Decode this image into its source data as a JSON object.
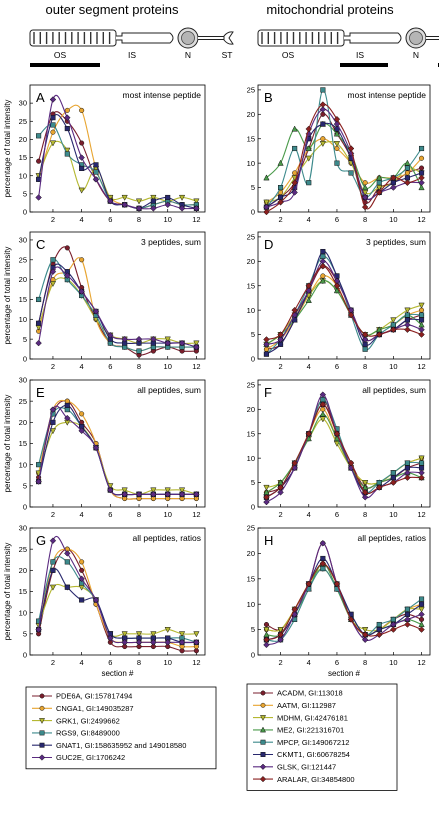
{
  "column_titles": [
    "outer segment proteins",
    "mitochondrial proteins"
  ],
  "rod_labels": {
    "left": [
      "OS",
      "IS",
      "N",
      "ST"
    ],
    "right": [
      "OS",
      "IS",
      "N",
      "ST"
    ]
  },
  "y_axis_label": "percentage of total intensity",
  "x_axis_label": "section #",
  "legend_left": {
    "names": [
      "PDE6A, GI:157817494",
      "CNGA1, GI:149035287",
      "GRK1, GI:2499662",
      "RGS9, GI:8489000",
      "GNAT1, GI:158635952 and 149018580",
      "GUC2E, GI:1706242"
    ],
    "colors": [
      "#7a1e2c",
      "#e8a531",
      "#b5b832",
      "#3d8a8c",
      "#28286e",
      "#5a2a80"
    ],
    "markers": [
      "circle",
      "circle",
      "triangle-down",
      "square",
      "square",
      "diamond"
    ]
  },
  "legend_right": {
    "names": [
      "ACADM, GI:113018",
      "AATM, GI:112987",
      "MDHM, GI:42476181",
      "ME2, GI:221316701",
      "MPCP, GI:149067212",
      "CKMT1, GI:60678254",
      "GLSK, GI:121447",
      "ARALAR, GI:34854800"
    ],
    "colors": [
      "#7a1e2c",
      "#e8a531",
      "#b5b832",
      "#4a9a4a",
      "#3d8a8c",
      "#28286e",
      "#5a2a80",
      "#8b2020"
    ],
    "markers": [
      "circle",
      "circle",
      "triangle-down",
      "triangle-up",
      "square",
      "square",
      "diamond",
      "diamond"
    ]
  },
  "chart_data": [
    {
      "panel": "A",
      "annotation": "most intense peptide",
      "type": "line",
      "x": [
        1,
        2,
        3,
        4,
        5,
        6,
        7,
        8,
        9,
        10,
        11,
        12
      ],
      "xticks": [
        2,
        4,
        6,
        8,
        10,
        12
      ],
      "xlim": [
        0.4,
        12.6
      ],
      "yticks": [
        0,
        5,
        10,
        15,
        20,
        25,
        30
      ],
      "ylim": [
        0,
        35
      ],
      "series": [
        {
          "values": [
            14,
            27,
            25,
            19,
            9,
            3,
            2,
            1,
            2,
            3,
            2,
            2
          ]
        },
        {
          "values": [
            9,
            22,
            28,
            28,
            12,
            4,
            2,
            1,
            2,
            3,
            2,
            2
          ]
        },
        {
          "values": [
            10,
            19,
            17,
            6,
            12,
            4,
            4,
            3,
            4,
            3,
            4,
            3
          ]
        },
        {
          "values": [
            21,
            24,
            16,
            13,
            11,
            3,
            2,
            1,
            2,
            3,
            2,
            2
          ]
        },
        {
          "values": [
            9,
            26,
            23,
            12,
            13,
            3,
            2,
            1,
            3,
            4,
            2,
            1
          ]
        },
        {
          "values": [
            4,
            31,
            26,
            15,
            9,
            3,
            2,
            1,
            1,
            2,
            1,
            1
          ]
        }
      ]
    },
    {
      "panel": "B",
      "annotation": "most intense peptide",
      "type": "line",
      "x": [
        1,
        2,
        3,
        4,
        5,
        6,
        7,
        8,
        9,
        10,
        11,
        12
      ],
      "xticks": [
        2,
        4,
        6,
        8,
        10,
        12
      ],
      "xlim": [
        0.4,
        12.6
      ],
      "yticks": [
        0,
        5,
        10,
        15,
        20,
        25
      ],
      "ylim": [
        0,
        26
      ],
      "series": [
        {
          "values": [
            1,
            3,
            6,
            13,
            20,
            16,
            11,
            2,
            5,
            6,
            8,
            9
          ]
        },
        {
          "values": [
            2,
            4,
            8,
            13,
            15,
            13,
            10,
            6,
            7,
            7,
            8,
            11
          ]
        },
        {
          "values": [
            2,
            3,
            7,
            11,
            14,
            14,
            10,
            4,
            5,
            6,
            9,
            8
          ]
        },
        {
          "values": [
            7,
            10,
            17,
            13,
            18,
            16,
            12,
            5,
            7,
            7,
            10,
            5
          ]
        },
        {
          "values": [
            1,
            5,
            13,
            6,
            25,
            10,
            8,
            3,
            6,
            7,
            9,
            13
          ]
        },
        {
          "values": [
            1,
            3,
            5,
            15,
            18,
            17,
            11,
            3,
            4,
            6,
            7,
            8
          ]
        },
        {
          "values": [
            1,
            2,
            4,
            16,
            21,
            18,
            12,
            3,
            4,
            5,
            6,
            6
          ]
        },
        {
          "values": [
            0,
            2,
            6,
            17,
            22,
            19,
            13,
            1,
            4,
            7,
            6,
            7
          ]
        }
      ]
    },
    {
      "panel": "C",
      "annotation": "3 peptides, sum",
      "type": "line",
      "x": [
        1,
        2,
        3,
        4,
        5,
        6,
        7,
        8,
        9,
        10,
        11,
        12
      ],
      "xticks": [
        2,
        4,
        6,
        8,
        10,
        12
      ],
      "xlim": [
        0.4,
        12.6
      ],
      "yticks": [
        0,
        5,
        10,
        15,
        20,
        25,
        30
      ],
      "ylim": [
        0,
        32
      ],
      "series": [
        {
          "values": [
            9,
            24,
            28,
            18,
            10,
            4,
            3,
            1,
            2,
            3,
            2,
            2
          ]
        },
        {
          "values": [
            7,
            20,
            22,
            25,
            10,
            4,
            3,
            2,
            3,
            3,
            3,
            3
          ]
        },
        {
          "values": [
            8,
            19,
            20,
            16,
            10,
            6,
            5,
            4,
            5,
            5,
            4,
            4
          ]
        },
        {
          "values": [
            15,
            25,
            20,
            16,
            11,
            4,
            3,
            2,
            3,
            3,
            3,
            3
          ]
        },
        {
          "values": [
            9,
            23,
            22,
            17,
            12,
            5,
            4,
            4,
            4,
            4,
            4,
            3
          ]
        },
        {
          "values": [
            4,
            22,
            21,
            17,
            12,
            6,
            5,
            5,
            5,
            4,
            4,
            3
          ]
        }
      ]
    },
    {
      "panel": "D",
      "annotation": "3 peptides, sum",
      "type": "line",
      "x": [
        1,
        2,
        3,
        4,
        5,
        6,
        7,
        8,
        9,
        10,
        11,
        12
      ],
      "xticks": [
        2,
        4,
        6,
        8,
        10,
        12
      ],
      "xlim": [
        0.4,
        12.6
      ],
      "yticks": [
        0,
        5,
        10,
        15,
        20,
        25
      ],
      "ylim": [
        0,
        26
      ],
      "series": [
        {
          "values": [
            2,
            3,
            8,
            14,
            19,
            16,
            10,
            4,
            5,
            6,
            8,
            9
          ]
        },
        {
          "values": [
            2,
            4,
            8,
            13,
            17,
            15,
            9,
            5,
            6,
            7,
            9,
            10
          ]
        },
        {
          "values": [
            3,
            5,
            9,
            13,
            16,
            14,
            9,
            5,
            6,
            8,
            10,
            11
          ]
        },
        {
          "values": [
            3,
            5,
            8,
            12,
            16,
            14,
            9,
            5,
            6,
            7,
            9,
            7
          ]
        },
        {
          "values": [
            1,
            4,
            9,
            15,
            21,
            17,
            9,
            2,
            5,
            7,
            9,
            9
          ]
        },
        {
          "values": [
            1,
            3,
            8,
            14,
            22,
            17,
            10,
            3,
            5,
            6,
            8,
            8
          ]
        },
        {
          "values": [
            3,
            4,
            9,
            14,
            20,
            16,
            10,
            4,
            5,
            6,
            7,
            6
          ]
        },
        {
          "values": [
            4,
            5,
            10,
            15,
            19,
            15,
            9,
            5,
            5,
            6,
            6,
            5
          ]
        }
      ]
    },
    {
      "panel": "E",
      "annotation": "all peptides, sum",
      "type": "line",
      "x": [
        1,
        2,
        3,
        4,
        5,
        6,
        7,
        8,
        9,
        10,
        11,
        12
      ],
      "xticks": [
        2,
        4,
        6,
        8,
        10,
        12
      ],
      "xlim": [
        0.4,
        12.6
      ],
      "yticks": [
        0,
        5,
        10,
        15,
        20,
        25,
        30
      ],
      "ylim": [
        0,
        30
      ],
      "series": [
        {
          "values": [
            7,
            22,
            25,
            20,
            15,
            4,
            2,
            2,
            2,
            2,
            2,
            2
          ]
        },
        {
          "values": [
            8,
            23,
            25,
            22,
            15,
            4,
            2,
            2,
            2,
            2,
            2,
            2
          ]
        },
        {
          "values": [
            8,
            18,
            20,
            19,
            14,
            5,
            4,
            3,
            4,
            4,
            4,
            3
          ]
        },
        {
          "values": [
            10,
            22,
            23,
            19,
            14,
            4,
            3,
            3,
            3,
            3,
            3,
            3
          ]
        },
        {
          "values": [
            6,
            20,
            24,
            19,
            14,
            4,
            3,
            3,
            3,
            3,
            3,
            3
          ]
        },
        {
          "values": [
            6,
            23,
            21,
            18,
            14,
            4,
            3,
            3,
            3,
            3,
            3,
            3
          ]
        }
      ]
    },
    {
      "panel": "F",
      "annotation": "all peptides, sum",
      "type": "line",
      "x": [
        1,
        2,
        3,
        4,
        5,
        6,
        7,
        8,
        9,
        10,
        11,
        12
      ],
      "xticks": [
        2,
        4,
        6,
        8,
        10,
        12
      ],
      "xlim": [
        0.4,
        12.6
      ],
      "yticks": [
        0,
        5,
        10,
        15,
        20,
        25
      ],
      "ylim": [
        0,
        26
      ],
      "series": [
        {
          "values": [
            3,
            4,
            8,
            15,
            22,
            15,
            9,
            4,
            5,
            6,
            8,
            9
          ]
        },
        {
          "values": [
            3,
            5,
            9,
            15,
            20,
            14,
            8,
            5,
            5,
            7,
            9,
            10
          ]
        },
        {
          "values": [
            4,
            5,
            9,
            14,
            18,
            13,
            8,
            5,
            5,
            7,
            9,
            10
          ]
        },
        {
          "values": [
            3,
            5,
            9,
            14,
            19,
            14,
            8,
            4,
            5,
            6,
            7,
            6
          ]
        },
        {
          "values": [
            2,
            4,
            9,
            15,
            22,
            16,
            8,
            3,
            5,
            7,
            9,
            9
          ]
        },
        {
          "values": [
            2,
            4,
            8,
            15,
            21,
            15,
            8,
            3,
            4,
            6,
            8,
            8
          ]
        },
        {
          "values": [
            1,
            3,
            8,
            15,
            23,
            15,
            8,
            2,
            4,
            5,
            7,
            7
          ]
        },
        {
          "values": [
            2,
            4,
            9,
            15,
            21,
            15,
            9,
            3,
            4,
            5,
            6,
            6
          ]
        }
      ]
    },
    {
      "panel": "G",
      "annotation": "all peptides, ratios",
      "type": "line",
      "x": [
        1,
        2,
        3,
        4,
        5,
        6,
        7,
        8,
        9,
        10,
        11,
        12
      ],
      "xticks": [
        2,
        4,
        6,
        8,
        10,
        12
      ],
      "xlim": [
        0.4,
        12.6
      ],
      "yticks": [
        0,
        5,
        10,
        15,
        20,
        25,
        30
      ],
      "ylim": [
        0,
        30
      ],
      "series": [
        {
          "values": [
            5,
            20,
            25,
            20,
            12,
            3,
            2,
            2,
            2,
            2,
            1,
            1
          ]
        },
        {
          "values": [
            6,
            22,
            25,
            22,
            12,
            4,
            3,
            3,
            3,
            3,
            2,
            2
          ]
        },
        {
          "values": [
            7,
            16,
            16,
            16,
            13,
            5,
            5,
            5,
            5,
            6,
            5,
            5
          ]
        },
        {
          "values": [
            8,
            22,
            22,
            17,
            13,
            5,
            4,
            4,
            4,
            4,
            4,
            3
          ]
        },
        {
          "values": [
            6,
            20,
            16,
            13,
            13,
            5,
            4,
            4,
            4,
            4,
            3,
            3
          ]
        },
        {
          "values": [
            6,
            27,
            24,
            18,
            13,
            4,
            3,
            3,
            3,
            3,
            3,
            3
          ]
        }
      ]
    },
    {
      "panel": "H",
      "annotation": "all peptides, ratios",
      "type": "line",
      "x": [
        1,
        2,
        3,
        4,
        5,
        6,
        7,
        8,
        9,
        10,
        11,
        12
      ],
      "xticks": [
        2,
        4,
        6,
        8,
        10,
        12
      ],
      "xlim": [
        0.4,
        12.6
      ],
      "yticks": [
        0,
        5,
        10,
        15,
        20,
        25
      ],
      "ylim": [
        0,
        25
      ],
      "series": [
        {
          "values": [
            6,
            5,
            9,
            14,
            22,
            14,
            7,
            4,
            5,
            7,
            8,
            7
          ]
        },
        {
          "values": [
            5,
            5,
            9,
            14,
            18,
            14,
            7,
            4,
            5,
            7,
            9,
            10
          ]
        },
        {
          "values": [
            5,
            5,
            9,
            14,
            17,
            13,
            7,
            5,
            5,
            7,
            9,
            9
          ]
        },
        {
          "values": [
            4,
            4,
            8,
            13,
            18,
            13,
            7,
            4,
            5,
            6,
            7,
            6
          ]
        },
        {
          "values": [
            3,
            3,
            7,
            13,
            17,
            13,
            8,
            4,
            6,
            7,
            9,
            11
          ]
        },
        {
          "values": [
            3,
            4,
            8,
            14,
            19,
            14,
            8,
            4,
            5,
            6,
            8,
            10
          ]
        },
        {
          "values": [
            2,
            3,
            8,
            14,
            22,
            14,
            7,
            3,
            4,
            6,
            7,
            8
          ]
        },
        {
          "values": [
            3,
            4,
            9,
            14,
            18,
            14,
            7,
            4,
            4,
            5,
            6,
            5
          ]
        }
      ]
    }
  ]
}
